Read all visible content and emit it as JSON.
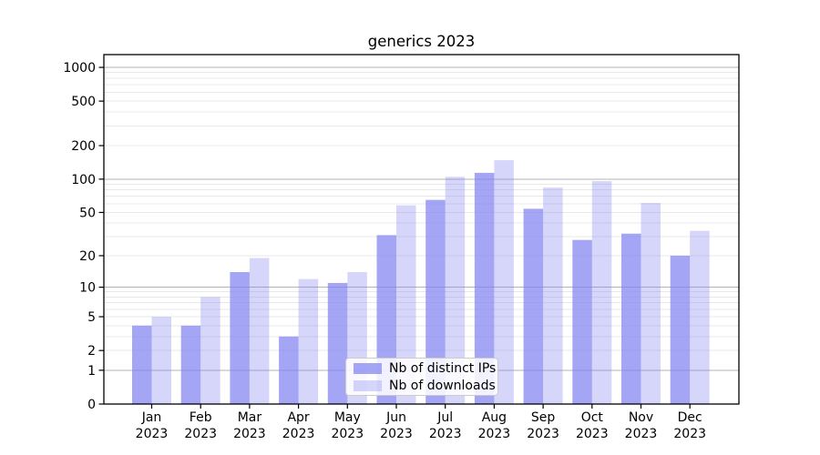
{
  "chart_data": {
    "type": "bar",
    "title": "generics 2023",
    "categories": [
      "Jan",
      "Feb",
      "Mar",
      "Apr",
      "May",
      "Jun",
      "Jul",
      "Aug",
      "Sep",
      "Oct",
      "Nov",
      "Dec"
    ],
    "x_year_line": "2023",
    "series": [
      {
        "name": "Nb of distinct IPs",
        "fill": "rgba(130,130,242,0.72)",
        "values": [
          4,
          4,
          14,
          3,
          11,
          31,
          65,
          114,
          54,
          28,
          32,
          20
        ]
      },
      {
        "name": "Nb of downloads",
        "fill": "rgba(130,130,242,0.33)",
        "values": [
          5,
          8,
          19,
          12,
          14,
          58,
          105,
          148,
          84,
          96,
          61,
          34
        ]
      }
    ],
    "yscale": "log1p",
    "ylim": [
      0,
      1290
    ],
    "y_ticks": [
      0,
      1,
      2,
      5,
      10,
      20,
      50,
      100,
      200,
      500,
      1000
    ],
    "y_major_gridlines": [
      1,
      10,
      100,
      1000
    ],
    "y_minor_gridlines": [
      2,
      3,
      4,
      5,
      6,
      7,
      8,
      9,
      20,
      30,
      40,
      50,
      60,
      70,
      80,
      90,
      200,
      300,
      400,
      500,
      600,
      700,
      800,
      900
    ],
    "grid": true,
    "legend_position": "lower center"
  },
  "style": {
    "bar_base_color": "#8282f2",
    "major_grid_color": "#b3b3b3",
    "minor_grid_color": "#e8e8e8",
    "axis_color": "#000000",
    "text_color": "#000000",
    "legend_border_color": "#cbcbcb",
    "background": "#ffffff"
  }
}
